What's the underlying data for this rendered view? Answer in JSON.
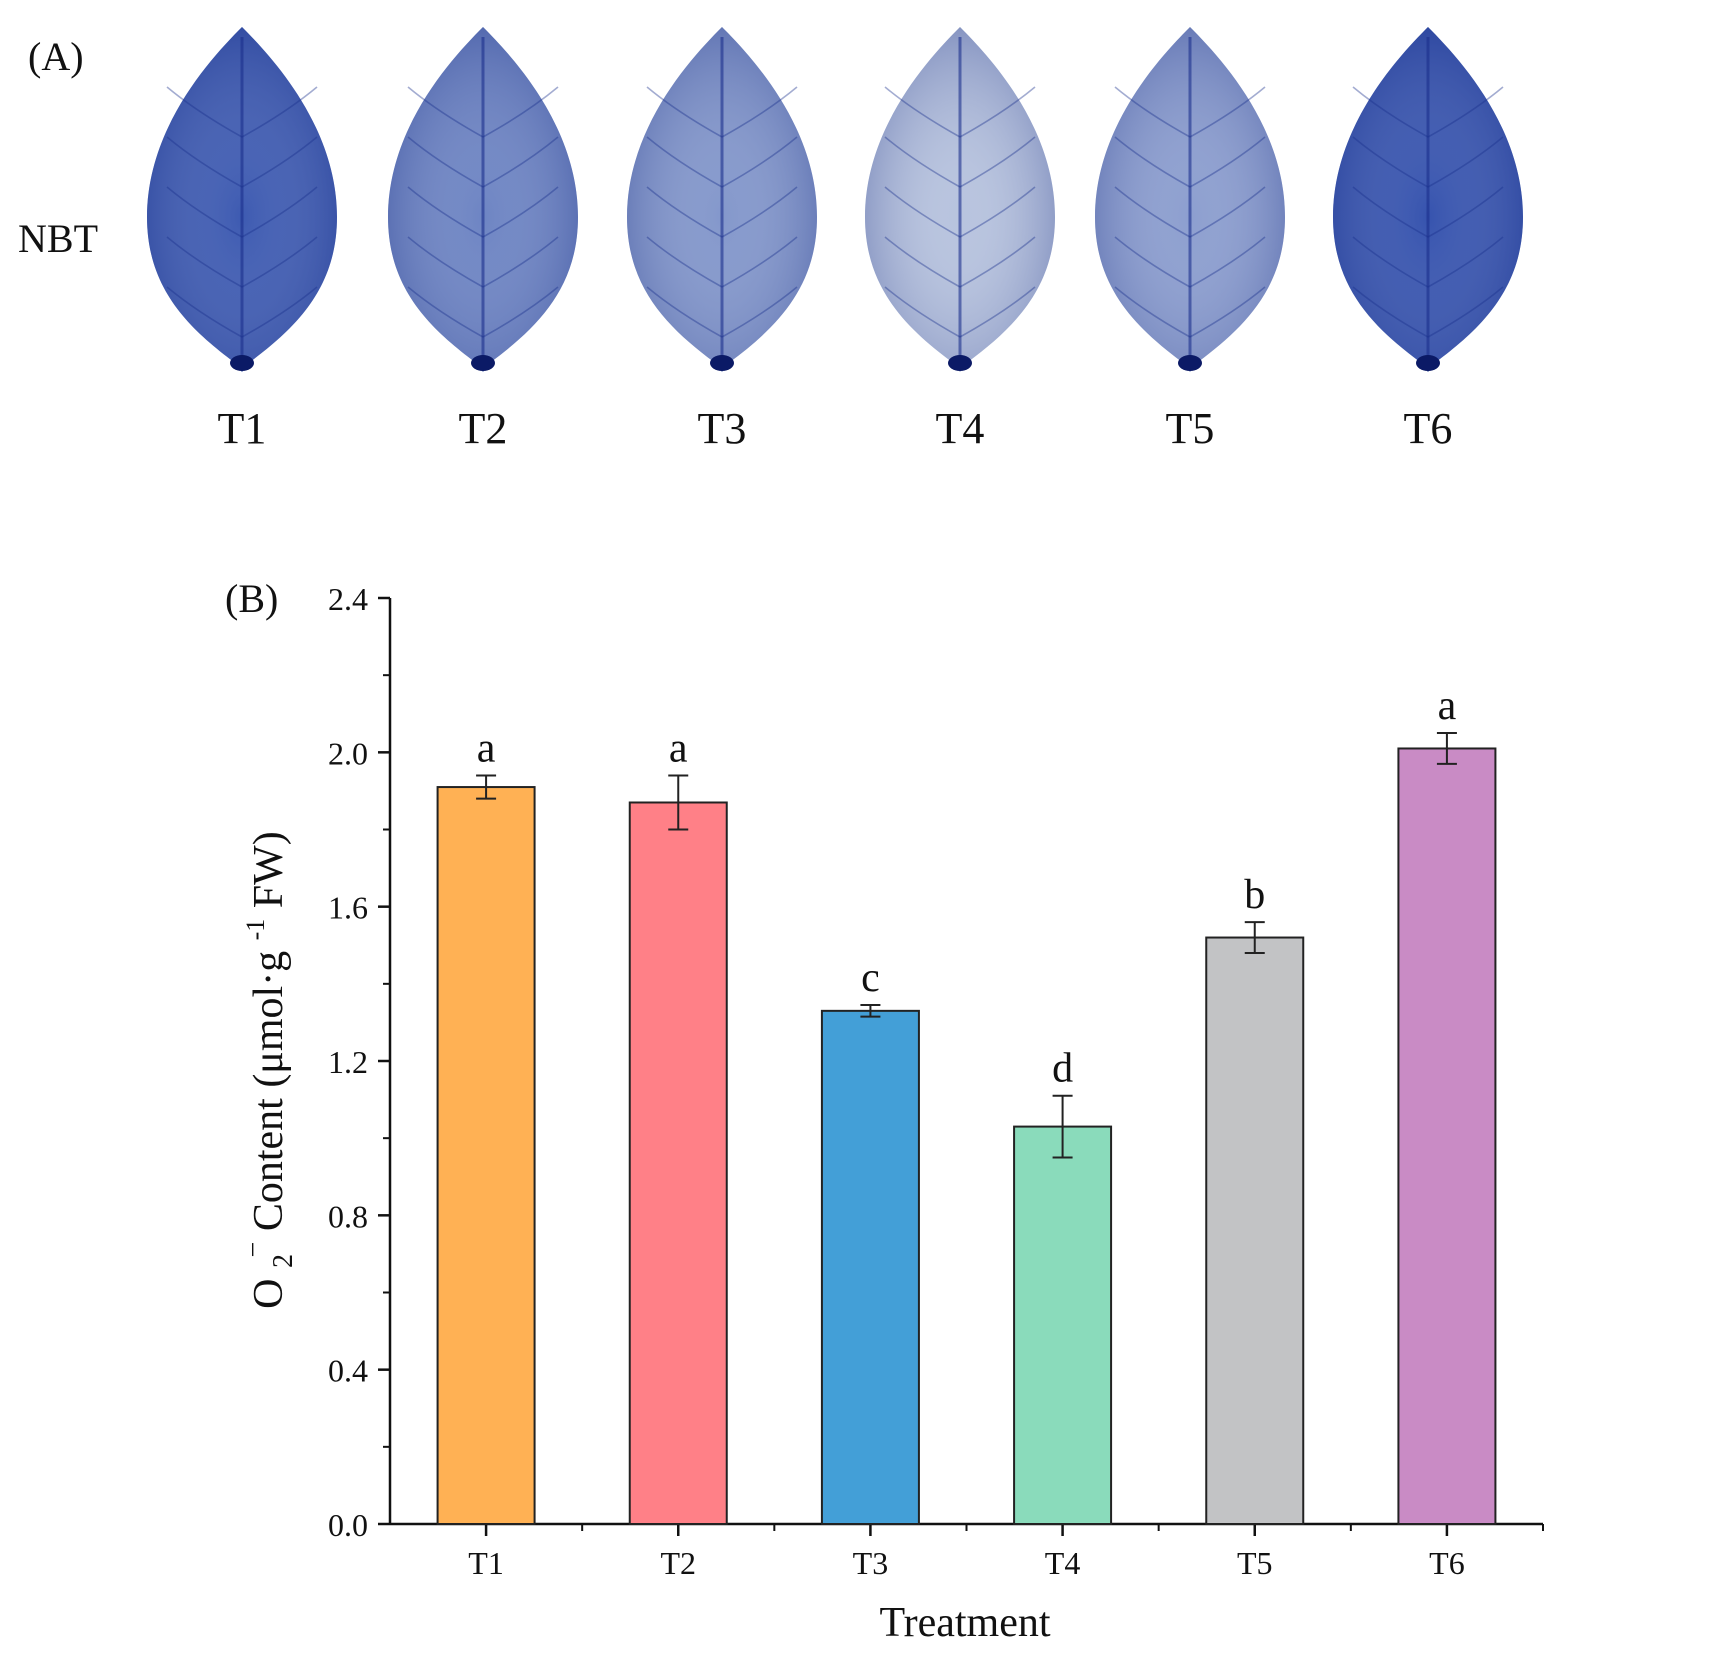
{
  "panel_a": {
    "label": "(A)",
    "row_label": "NBT",
    "leaves": [
      {
        "name": "T1",
        "stain_intensity": 0.88
      },
      {
        "name": "T2",
        "stain_intensity": 0.62
      },
      {
        "name": "T3",
        "stain_intensity": 0.5
      },
      {
        "name": "T4",
        "stain_intensity": 0.22
      },
      {
        "name": "T5",
        "stain_intensity": 0.45
      },
      {
        "name": "T6",
        "stain_intensity": 0.92
      }
    ],
    "stain_color": "#2747a8",
    "background_leaf_color": "#dfe6ee"
  },
  "chart_data": {
    "type": "bar",
    "panel_label": "(B)",
    "categories": [
      "T1",
      "T2",
      "T3",
      "T4",
      "T5",
      "T6"
    ],
    "values": [
      1.91,
      1.87,
      1.33,
      1.03,
      1.52,
      2.01
    ],
    "errors": [
      0.03,
      0.07,
      0.015,
      0.08,
      0.04,
      0.04
    ],
    "significance": [
      "a",
      "a",
      "c",
      "d",
      "b",
      "a"
    ],
    "colors": [
      "#ffb154",
      "#ff8087",
      "#439fd7",
      "#8adbbb",
      "#c2c3c5",
      "#c98bc5"
    ],
    "xlabel": "Treatment",
    "ylabel": {
      "main": "O",
      "sub": "2",
      "sup": "−",
      "rest": " Content (μmol·g",
      "unit_sup": "-1",
      "end": " FW)"
    },
    "ylim": [
      0.0,
      2.4
    ],
    "yticks": [
      "0.0",
      "0.4",
      "0.8",
      "1.2",
      "1.6",
      "2.0",
      "2.4"
    ],
    "grid": false,
    "legend": "none"
  }
}
